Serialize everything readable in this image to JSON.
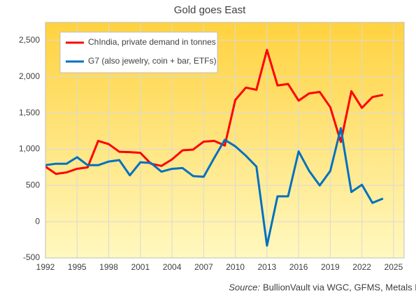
{
  "chart_data": {
    "type": "line",
    "title": "Gold goes East",
    "x": [
      1992,
      1993,
      1994,
      1995,
      1996,
      1997,
      1998,
      1999,
      2000,
      2001,
      2002,
      2003,
      2004,
      2005,
      2006,
      2007,
      2008,
      2009,
      2010,
      2011,
      2012,
      2013,
      2014,
      2015,
      2016,
      2017,
      2018,
      2019,
      2020,
      2021,
      2022,
      2023,
      2024
    ],
    "series": [
      {
        "name": "ChIndia, private demand in tonnes",
        "color": "#ff0000",
        "values": [
          760,
          660,
          680,
          730,
          750,
          1115,
          1070,
          965,
          960,
          950,
          800,
          770,
          860,
          985,
          995,
          1105,
          1115,
          1050,
          1680,
          1850,
          1820,
          2370,
          1880,
          1900,
          1670,
          1770,
          1790,
          1580,
          1100,
          1800,
          1570,
          1720,
          1750
        ]
      },
      {
        "name": "G7 (also jewelry, coin + bar, ETFs)",
        "color": "#0070c0",
        "values": [
          780,
          800,
          800,
          890,
          780,
          780,
          830,
          850,
          640,
          820,
          810,
          690,
          730,
          740,
          630,
          620,
          880,
          1130,
          1040,
          910,
          760,
          -330,
          350,
          350,
          970,
          700,
          500,
          700,
          1290,
          410,
          510,
          260,
          320
        ]
      }
    ],
    "xlim": [
      1992,
      2026
    ],
    "xticks": [
      1992,
      1995,
      1998,
      2001,
      2004,
      2007,
      2010,
      2013,
      2016,
      2019,
      2022,
      2025
    ],
    "ylim": [
      -500,
      2750
    ],
    "yticks": [
      -500,
      0,
      500,
      {
        "value": 1000,
        "label": "1,000"
      },
      {
        "value": 1500,
        "label": "1,500"
      },
      {
        "value": 2000,
        "label": "2,000"
      },
      {
        "value": 2500,
        "label": "2,500"
      }
    ],
    "grid": true,
    "legend": "upper left",
    "source_label": "Source:",
    "source": "BullionVault via WGC, GFMS, Metals Focus"
  }
}
